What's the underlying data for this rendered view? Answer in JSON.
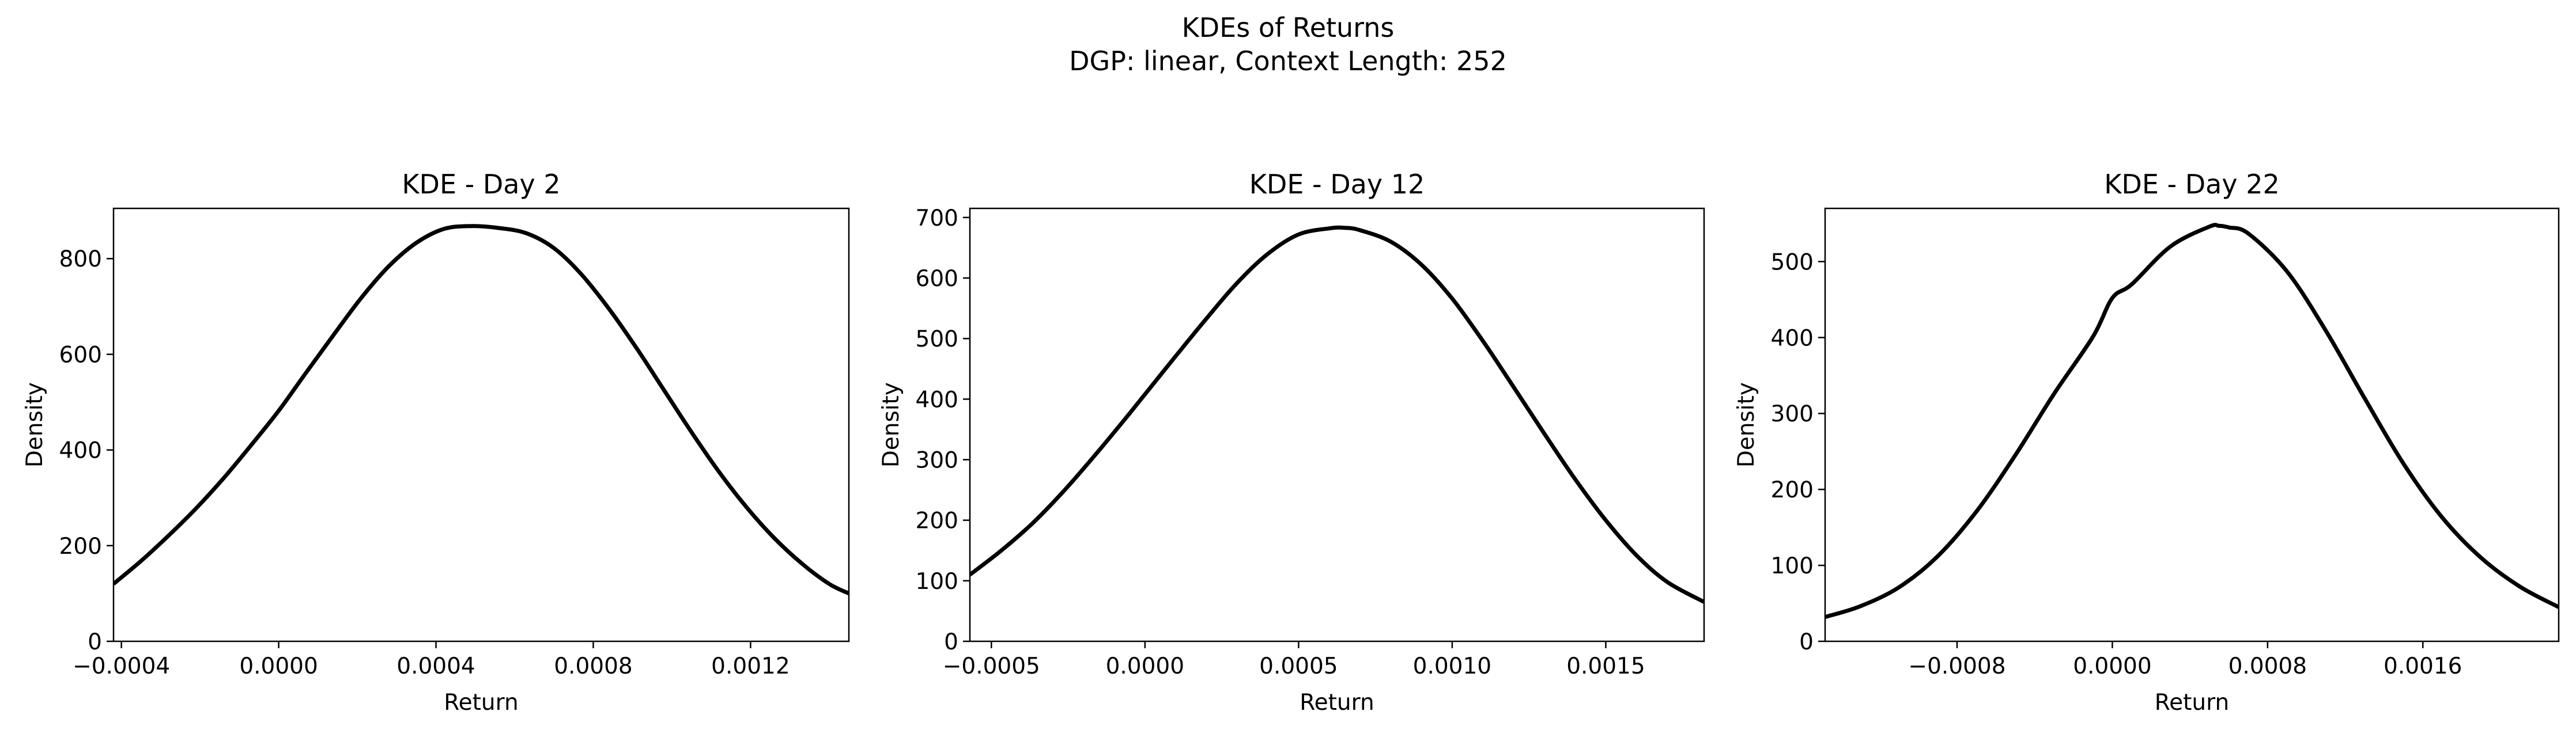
{
  "figure": {
    "title_line1": "KDEs of Returns",
    "title_line2": "DGP: linear, Context Length: 252"
  },
  "chart_data": [
    {
      "type": "line",
      "title": "KDE - Day 2",
      "xlabel": "Return",
      "ylabel": "Density",
      "xlim": [
        -0.00042,
        0.00145
      ],
      "ylim": [
        0,
        905
      ],
      "xticks": [
        -0.0004,
        0.0,
        0.0004,
        0.0008,
        0.0012
      ],
      "xtick_labels": [
        "−0.0004",
        "0.0000",
        "0.0004",
        "0.0008",
        "0.0012"
      ],
      "yticks": [
        0,
        200,
        400,
        600,
        800
      ],
      "ytick_labels": [
        "0",
        "200",
        "400",
        "600",
        "800"
      ],
      "grid": false,
      "series": [
        {
          "color": "#000000",
          "x": [
            -0.00042,
            -0.00035,
            -0.00028,
            -0.00021,
            -0.00014,
            -7e-05,
            0.0,
            7e-05,
            0.00014,
            0.00021,
            0.00028,
            0.00035,
            0.00042,
            0.00049,
            0.00056,
            0.00063,
            0.0007,
            0.00077,
            0.00084,
            0.00091,
            0.00098,
            0.00105,
            0.00112,
            0.00119,
            0.00126,
            0.00133,
            0.0014,
            0.00145
          ],
          "y": [
            120,
            168,
            221,
            278,
            341,
            410,
            482,
            562,
            641,
            718,
            784,
            833,
            862,
            868,
            864,
            853,
            822,
            767,
            695,
            613,
            525,
            437,
            354,
            280,
            216,
            163,
            120,
            100
          ]
        }
      ]
    },
    {
      "type": "line",
      "title": "KDE - Day 12",
      "xlabel": "Return",
      "ylabel": "Density",
      "xlim": [
        -0.00057,
        0.00182
      ],
      "ylim": [
        0,
        715
      ],
      "xticks": [
        -0.0005,
        0.0,
        0.0005,
        0.001,
        0.0015
      ],
      "xtick_labels": [
        "−0.0005",
        "0.0000",
        "0.0005",
        "0.0010",
        "0.0015"
      ],
      "yticks": [
        0,
        100,
        200,
        300,
        400,
        500,
        600,
        700
      ],
      "ytick_labels": [
        "0",
        "100",
        "200",
        "300",
        "400",
        "500",
        "600",
        "700"
      ],
      "grid": false,
      "series": [
        {
          "color": "#000000",
          "x": [
            -0.00057,
            -0.00047,
            -0.00037,
            -0.00027,
            -0.00017,
            -7e-05,
            0.0,
            0.0001,
            0.0002,
            0.0003,
            0.0004,
            0.0005,
            0.0006,
            0.00065,
            0.0007,
            0.0008,
            0.0009,
            0.001,
            0.0011,
            0.0012,
            0.0013,
            0.0014,
            0.0015,
            0.0016,
            0.0017,
            0.00182
          ],
          "y": [
            110,
            149,
            193,
            245,
            303,
            364,
            408,
            471,
            533,
            592,
            640,
            672,
            682,
            683,
            679,
            660,
            622,
            566,
            496,
            420,
            343,
            268,
            200,
            142,
            98,
            65
          ]
        }
      ]
    },
    {
      "type": "line",
      "title": "KDE - Day 22",
      "xlabel": "Return",
      "ylabel": "Density",
      "xlim": [
        -0.00148,
        0.0023
      ],
      "ylim": [
        0,
        570
      ],
      "xticks": [
        -0.0008,
        0.0,
        0.0008,
        0.0016
      ],
      "xtick_labels": [
        "−0.0008",
        "0.0000",
        "0.0008",
        "0.0016"
      ],
      "yticks": [
        0,
        100,
        200,
        300,
        400,
        500
      ],
      "ytick_labels": [
        "0",
        "100",
        "200",
        "300",
        "400",
        "500"
      ],
      "grid": false,
      "series": [
        {
          "color": "#000000",
          "x": [
            -0.00148,
            -0.0013,
            -0.0011,
            -0.0009,
            -0.0007,
            -0.0005,
            -0.0003,
            -0.0001,
            0.0,
            0.0001,
            0.0003,
            0.0005,
            0.00055,
            0.0006,
            0.0007,
            0.0009,
            0.0011,
            0.0013,
            0.0015,
            0.0017,
            0.0019,
            0.0021,
            0.0023
          ],
          "y": [
            32,
            46,
            71,
            112,
            171,
            245,
            326,
            401,
            452,
            470,
            520,
            546,
            547,
            545,
            537,
            487,
            409,
            320,
            234,
            163,
            110,
            72,
            45
          ]
        }
      ]
    }
  ]
}
